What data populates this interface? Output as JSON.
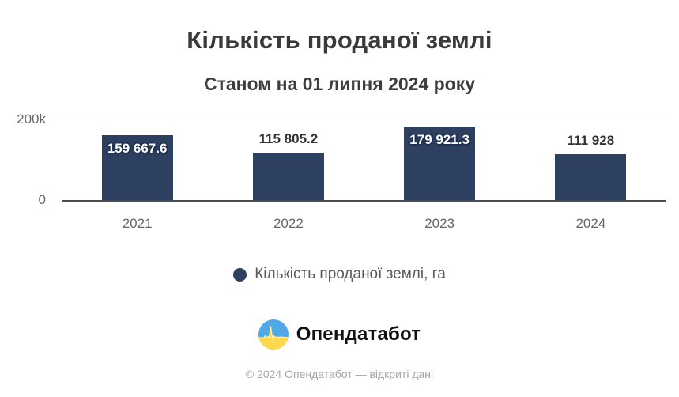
{
  "chart_data": {
    "type": "bar",
    "title": "Кількість проданої землі",
    "subtitle": "Станом на 01 липня 2024 року",
    "categories": [
      "2021",
      "2022",
      "2023",
      "2024"
    ],
    "series": [
      {
        "name": "Кількість проданої землі, га",
        "values": [
          159667.6,
          115805.2,
          179921.3,
          111928
        ]
      }
    ],
    "value_labels": [
      "159 667.6",
      "115 805.2",
      "179 921.3",
      "111 928"
    ],
    "label_inside": [
      true,
      false,
      true,
      false
    ],
    "ylim": [
      0,
      200000
    ],
    "yticks": [
      {
        "value": 0,
        "label": "0"
      },
      {
        "value": 200000,
        "label": "200k"
      }
    ],
    "grid": "single top gridline at 200k, dark baseline at 0",
    "legend_position": "bottom-center",
    "bar_color": "#2e4060"
  },
  "legend": {
    "label": "Кількість проданої землі, га",
    "marker_color": "#2e4060"
  },
  "branding": {
    "logo_text": "Опендатабот",
    "logo_colors": {
      "blue": "#4fa8e8",
      "yellow": "#ffd84d",
      "pulse_stroke": "#ffef9e"
    }
  },
  "footer": {
    "copyright": "© 2024 Опендатабот — відкриті дані"
  }
}
